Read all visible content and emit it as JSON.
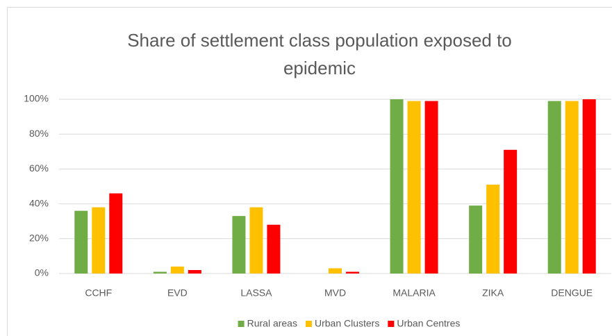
{
  "chart_data": {
    "type": "bar",
    "title": "Share of settlement class population exposed to epidemic",
    "categories": [
      "CCHF",
      "EVD",
      "LASSA",
      "MVD",
      "MALARIA",
      "ZIKA",
      "DENGUE"
    ],
    "series": [
      {
        "name": "Rural areas",
        "color": "#70ad47",
        "values": [
          36,
          1,
          33,
          0,
          100,
          39,
          99
        ]
      },
      {
        "name": "Urban Clusters",
        "color": "#ffc000",
        "values": [
          38,
          4,
          38,
          3,
          99,
          51,
          99
        ]
      },
      {
        "name": "Urban Centres",
        "color": "#ff0000",
        "values": [
          46,
          2,
          28,
          1,
          99,
          71,
          100
        ]
      }
    ],
    "ylim": [
      0,
      100
    ],
    "yticks": [
      {
        "value": 0,
        "label": "0%"
      },
      {
        "value": 20,
        "label": "20%"
      },
      {
        "value": 40,
        "label": "40%"
      },
      {
        "value": 60,
        "label": "60%"
      },
      {
        "value": 80,
        "label": "80%"
      },
      {
        "value": 100,
        "label": "100%"
      }
    ],
    "grid": true,
    "legend": "bottom"
  }
}
